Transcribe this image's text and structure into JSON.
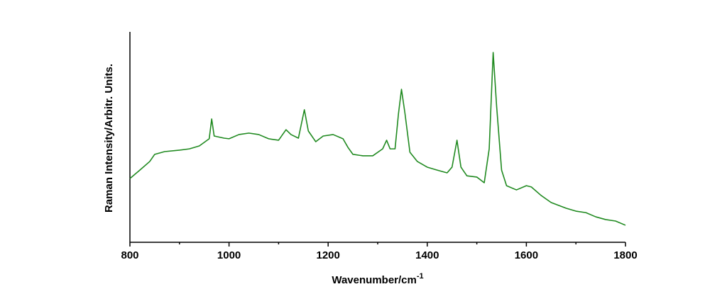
{
  "chart_data": {
    "type": "line",
    "x_label": "Wavenumber/cm",
    "x_label_sup": "-1",
    "y_label": "Raman Intensity/Arbitr. Units.",
    "xlim": [
      800,
      1800
    ],
    "xticks": [
      800,
      1000,
      1200,
      1400,
      1600,
      1800
    ],
    "xminorticks": [
      900,
      1100,
      1300,
      1500,
      1700
    ],
    "ylim": [
      0,
      100
    ],
    "series": [
      {
        "color": "#208a20",
        "x": [
          800,
          820,
          840,
          850,
          870,
          900,
          920,
          940,
          960,
          965,
          970,
          990,
          1000,
          1020,
          1040,
          1060,
          1080,
          1100,
          1115,
          1125,
          1140,
          1152,
          1160,
          1175,
          1190,
          1210,
          1230,
          1240,
          1250,
          1270,
          1290,
          1310,
          1318,
          1325,
          1335,
          1342,
          1348,
          1355,
          1365,
          1380,
          1400,
          1420,
          1440,
          1450,
          1460,
          1468,
          1480,
          1500,
          1515,
          1525,
          1533,
          1540,
          1550,
          1560,
          1580,
          1600,
          1610,
          1630,
          1650,
          1680,
          1700,
          1720,
          1740,
          1760,
          1780,
          1800
        ],
        "values": [
          30.3,
          34.3,
          38.4,
          41.8,
          43.1,
          43.8,
          44.4,
          45.8,
          49.2,
          58.6,
          50.5,
          49.5,
          49.2,
          51.2,
          51.9,
          51.2,
          49.2,
          48.5,
          53.5,
          51.2,
          49.5,
          63.0,
          52.9,
          47.8,
          50.5,
          51.2,
          49.2,
          45.1,
          41.8,
          41.1,
          41.1,
          44.4,
          48.5,
          44.4,
          44.4,
          61.3,
          72.7,
          61.3,
          42.8,
          38.4,
          35.7,
          34.3,
          33.0,
          35.7,
          48.5,
          35.7,
          31.6,
          31.0,
          28.3,
          44.4,
          90.2,
          64.6,
          34.3,
          26.9,
          24.9,
          26.9,
          26.3,
          22.2,
          18.9,
          16.2,
          14.8,
          14.1,
          12.1,
          10.8,
          10.1,
          8.1
        ]
      }
    ]
  }
}
